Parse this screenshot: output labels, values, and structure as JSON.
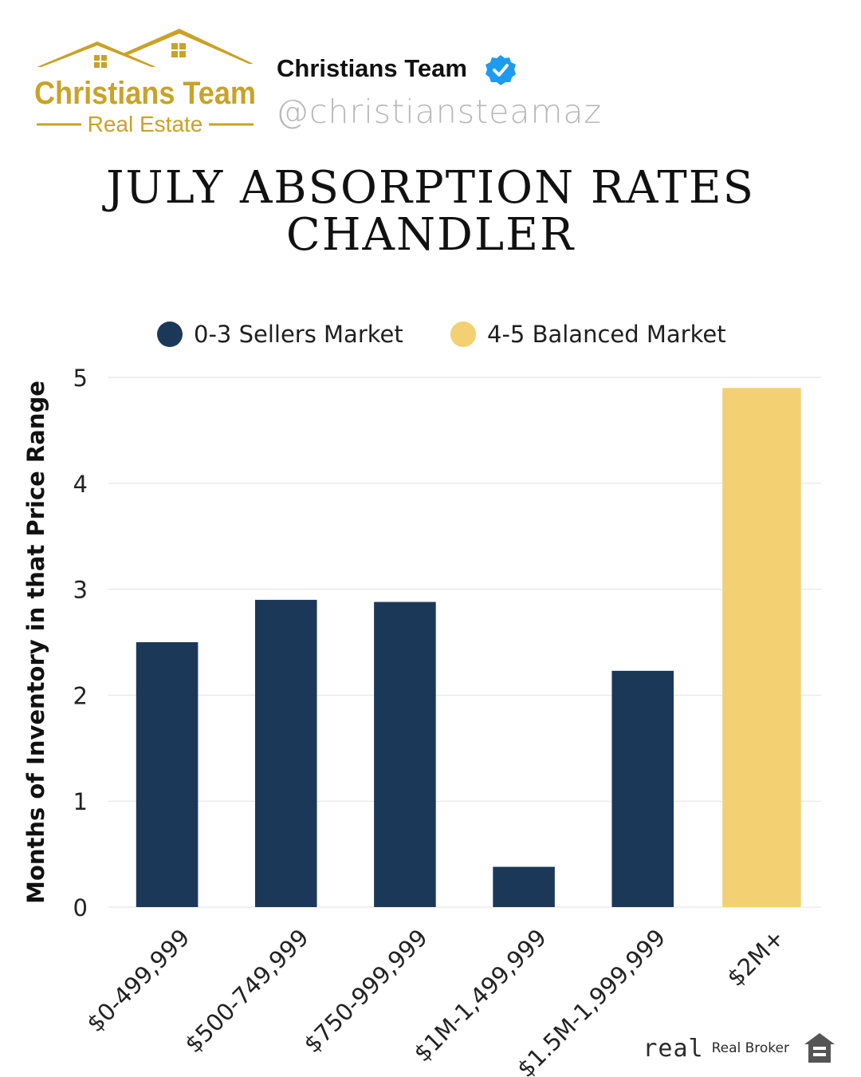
{
  "brand": {
    "logo_line1": "Christians Team",
    "logo_line2": "Real Estate",
    "name": "Christians Team",
    "handle": "@christiansteamaz",
    "verified_icon": "verified-badge-icon"
  },
  "colors": {
    "sellers": "#1b3858",
    "balanced": "#f3d072",
    "gold": "#c9a227"
  },
  "footer": {
    "logo_text": "real",
    "broker_label": "Real Broker",
    "housing_icon": "equal-housing-icon"
  },
  "chart_data": {
    "type": "bar",
    "title": "JULY ABSORPTION RATES",
    "subtitle": "CHANDLER",
    "ylabel": "Months of Inventory in that Price Range",
    "xlabel": "",
    "ylim": [
      0,
      5
    ],
    "yticks": [
      0,
      1,
      2,
      3,
      4,
      5
    ],
    "grid": true,
    "legend_position": "top-center",
    "legend": [
      {
        "label": "0-3 Sellers Market",
        "color": "#1b3858"
      },
      {
        "label": "4-5 Balanced Market",
        "color": "#f3d072"
      }
    ],
    "categories": [
      "$0-499,999",
      "$500-749,999",
      "$750-999,999",
      "$1M-1,499,999",
      "$1.5M-1,999,999",
      "$2M+"
    ],
    "series": [
      {
        "name": "0-3 Sellers Market",
        "values": [
          2.5,
          2.9,
          2.88,
          0.38,
          2.23,
          null
        ]
      },
      {
        "name": "4-5 Balanced Market",
        "values": [
          null,
          null,
          null,
          null,
          null,
          4.9
        ]
      }
    ]
  }
}
